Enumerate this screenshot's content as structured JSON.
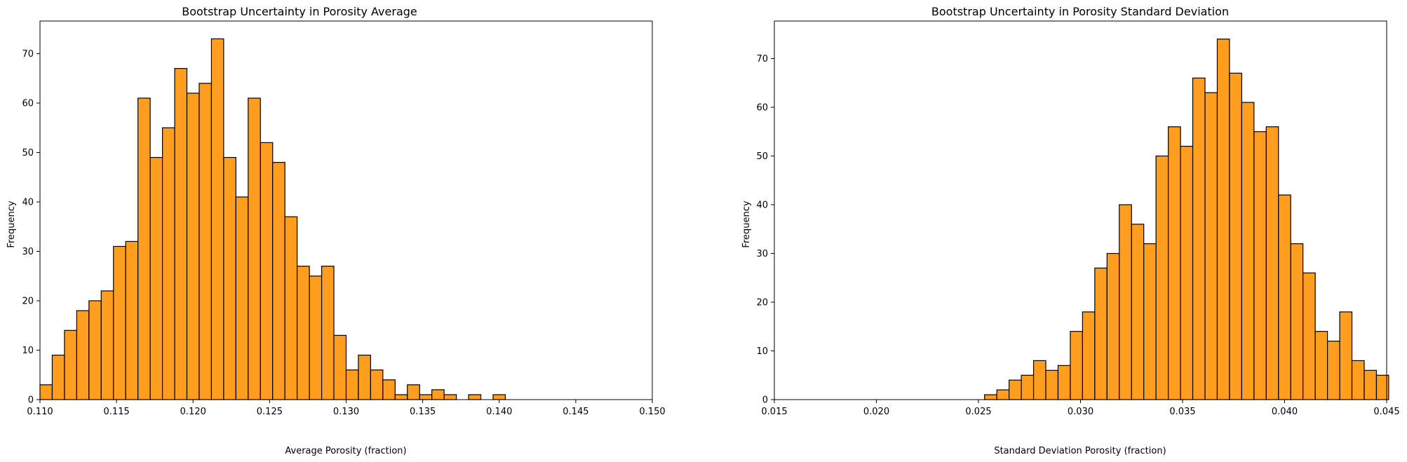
{
  "colors": {
    "bar_fill": "#ff9d1e",
    "bar_edge": "#000000"
  },
  "chart_data": [
    {
      "type": "histogram",
      "title": "Bootstrap Uncertainty in Porosity Average",
      "xlabel": "Average Porosity (fraction)",
      "ylabel": "Frequency",
      "xlim": [
        0.11,
        0.15
      ],
      "ylim": [
        0,
        76.6
      ],
      "xticks": [
        "0.110",
        "0.115",
        "0.120",
        "0.125",
        "0.130",
        "0.135",
        "0.140",
        "0.145",
        "0.150"
      ],
      "yticks": [
        "0",
        "10",
        "20",
        "30",
        "40",
        "50",
        "60",
        "70"
      ],
      "grid": false,
      "bin_start": 0.11,
      "bin_width": 0.0008,
      "frequencies": [
        3,
        9,
        14,
        18,
        20,
        22,
        31,
        32,
        61,
        49,
        55,
        67,
        62,
        64,
        73,
        49,
        41,
        61,
        52,
        48,
        37,
        27,
        25,
        27,
        13,
        6,
        9,
        6,
        4,
        1,
        3,
        1,
        2,
        1,
        0,
        1,
        0,
        1
      ]
    },
    {
      "type": "histogram",
      "title": "Bootstrap Uncertainty in Porosity Standard Deviation",
      "xlabel": "Standard Deviation Porosity (fraction)",
      "ylabel": "Frequency",
      "xlim": [
        0.015,
        0.045
      ],
      "ylim": [
        0,
        77.7
      ],
      "xticks": [
        "0.015",
        "0.020",
        "0.025",
        "0.030",
        "0.035",
        "0.040",
        "0.045"
      ],
      "yticks": [
        "0",
        "10",
        "20",
        "30",
        "40",
        "50",
        "60",
        "70"
      ],
      "grid": false,
      "bin_start": 0.0253,
      "bin_width": 0.0006,
      "frequencies": [
        1,
        2,
        4,
        5,
        8,
        6,
        7,
        14,
        18,
        27,
        30,
        40,
        36,
        32,
        50,
        56,
        52,
        66,
        63,
        74,
        67,
        61,
        55,
        56,
        42,
        32,
        26,
        14,
        12,
        18,
        8,
        6,
        5
      ]
    }
  ]
}
